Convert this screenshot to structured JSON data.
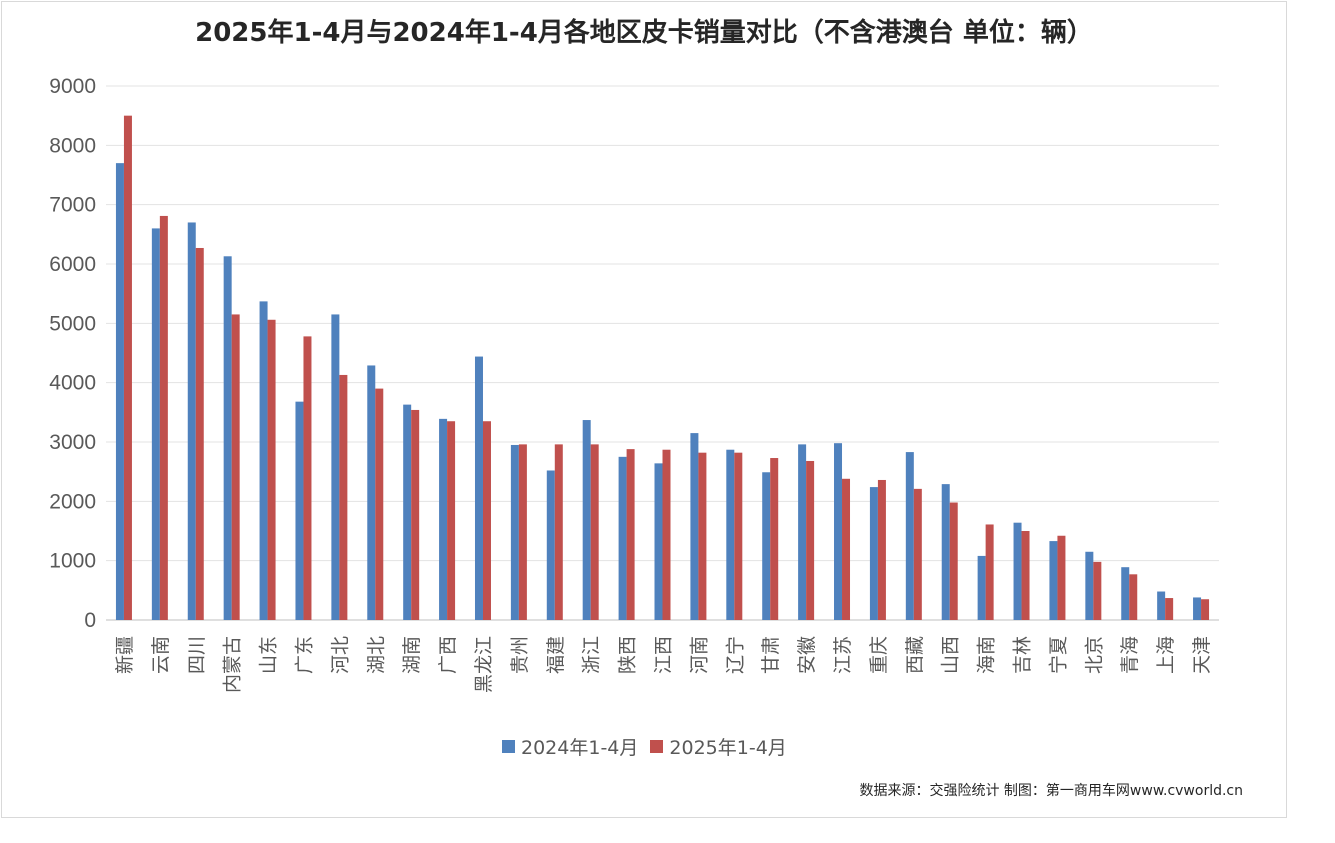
{
  "chart_data": {
    "type": "bar",
    "title": "2025年1-4月与2024年1-4月各地区皮卡销量对比（不含港澳台 单位：辆）",
    "categories": [
      "新疆",
      "云南",
      "四川",
      "内蒙古",
      "山东",
      "广东",
      "河北",
      "湖北",
      "湖南",
      "广西",
      "黑龙江",
      "贵州",
      "福建",
      "浙江",
      "陕西",
      "江西",
      "河南",
      "辽宁",
      "甘肃",
      "安徽",
      "江苏",
      "重庆",
      "西藏",
      "山西",
      "海南",
      "吉林",
      "宁夏",
      "北京",
      "青海",
      "上海",
      "天津"
    ],
    "series": [
      {
        "name": "2024年1-4月",
        "color": "#4f81bd",
        "values": [
          7700,
          6600,
          6700,
          6130,
          5370,
          3680,
          5150,
          4290,
          3630,
          3390,
          4440,
          2950,
          2520,
          3370,
          2750,
          2640,
          3150,
          2870,
          2490,
          2960,
          2980,
          2240,
          2830,
          2290,
          1080,
          1640,
          1330,
          1150,
          890,
          480,
          380
        ]
      },
      {
        "name": "2025年1-4月",
        "color": "#c0504d",
        "values": [
          8500,
          6810,
          6270,
          5150,
          5060,
          4780,
          4130,
          3900,
          3540,
          3350,
          3350,
          2960,
          2960,
          2960,
          2880,
          2870,
          2820,
          2820,
          2730,
          2680,
          2380,
          2360,
          2210,
          1980,
          1610,
          1500,
          1420,
          980,
          770,
          370,
          350
        ]
      }
    ],
    "ylim": [
      0,
      9000
    ],
    "yticks": [
      "0",
      "1000",
      "2000",
      "3000",
      "4000",
      "5000",
      "6000",
      "7000",
      "8000",
      "9000"
    ],
    "grid": true,
    "legend_position": "bottom"
  },
  "source": "数据来源：交强险统计 制图：第一商用车网www.cvworld.cn"
}
